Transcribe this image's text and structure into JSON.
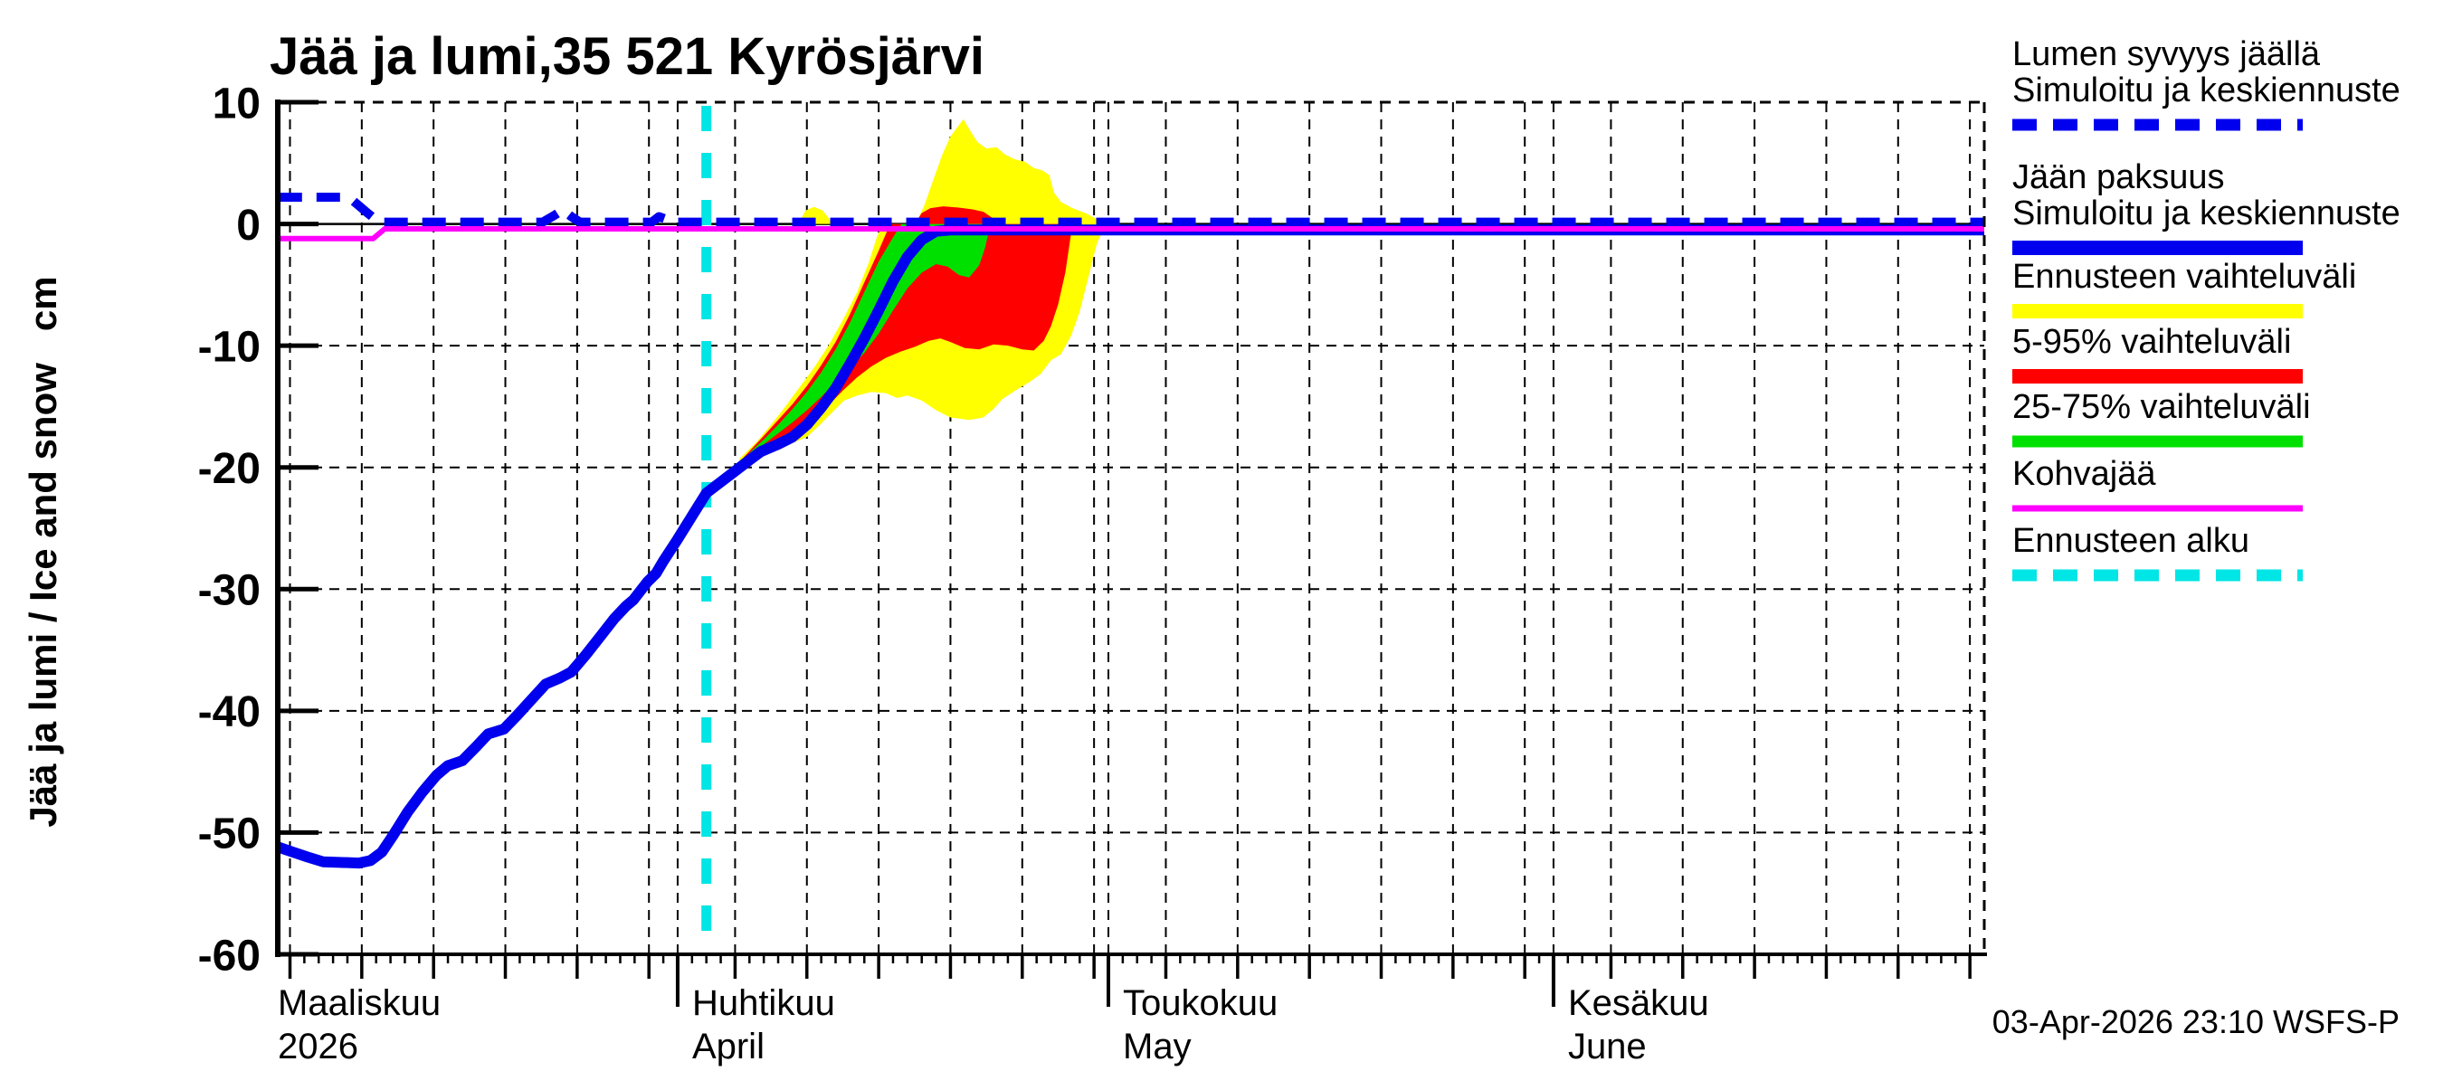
{
  "title": "Jää ja lumi,35 521 Kyrösjärvi",
  "timestamp": "03-Apr-2026 23:10 WSFS-P",
  "y_axis": {
    "label": "Jää ja lumi / Ice and snow   cm",
    "ticks": [
      10,
      0,
      -10,
      -20,
      -30,
      -40,
      -50,
      -60
    ],
    "max": 10,
    "min": -60
  },
  "x_axis": {
    "day_min": 3.15,
    "day_max": 122,
    "months": [
      {
        "name_fi": "Maaliskuu",
        "name_sub": "2026",
        "start_day": 0,
        "days": 31
      },
      {
        "name_fi": "Huhtikuu",
        "name_sub": "April",
        "start_day": 31,
        "days": 30
      },
      {
        "name_fi": "Toukokuu",
        "name_sub": "May",
        "start_day": 61,
        "days": 31
      },
      {
        "name_fi": "Kesäkuu",
        "name_sub": "June",
        "start_day": 92,
        "days": 30
      }
    ]
  },
  "legend": [
    {
      "lines": [
        "Lumen syvyys jäällä",
        "Simuloitu ja keskiennuste"
      ],
      "color": "#0000EE",
      "style": "dashed",
      "thickness": 13
    },
    {
      "lines": [
        "Jään paksuus",
        "Simuloitu ja keskiennuste"
      ],
      "color": "#0000EE",
      "style": "solid",
      "thickness": 16
    },
    {
      "lines": [
        "Ennusteen vaihteluväli"
      ],
      "color": "#FFFF00",
      "style": "solid",
      "thickness": 16
    },
    {
      "lines": [
        "5-95% vaihteluväli"
      ],
      "color": "#FF0000",
      "style": "solid",
      "thickness": 16
    },
    {
      "lines": [
        "25-75% vaihteluväli"
      ],
      "color": "#00E000",
      "style": "solid",
      "thickness": 13
    },
    {
      "lines": [
        "Kohvajää"
      ],
      "color": "#FF00FF",
      "style": "solid",
      "thickness": 7
    },
    {
      "lines": [
        "Ennusteen alku"
      ],
      "color": "#00E5E5",
      "style": "dashed",
      "thickness": 13
    }
  ],
  "chart_data": {
    "type": "line",
    "x_unit": "days since 2026-03-01 (0 = Mar 1)",
    "ylabel": "Jää ja lumi / Ice and snow cm",
    "ylim": [
      -60,
      10
    ],
    "grid": "dashed, 5-day vertical and 10 cm horizontal",
    "forecast_start_day": 33,
    "series": [
      {
        "name": "snow-depth-on-ice-simulated-and-mean-forecast",
        "color": "#0000EE",
        "style": "dashed",
        "width": 10,
        "points": [
          [
            3.2,
            2.2
          ],
          [
            7.6,
            2.2
          ],
          [
            8.4,
            1.9
          ],
          [
            9.4,
            0.9
          ],
          [
            10.2,
            0.15
          ],
          [
            21.6,
            0.15
          ],
          [
            22.4,
            0.7
          ],
          [
            23,
            1.15
          ],
          [
            23.6,
            0.6
          ],
          [
            24.2,
            0.15
          ],
          [
            29.2,
            0.15
          ],
          [
            29.7,
            0.6
          ],
          [
            30.3,
            0.35
          ],
          [
            30.9,
            0.15
          ],
          [
            122,
            0.15
          ]
        ]
      },
      {
        "name": "ice-thickness-simulated-and-mean-forecast",
        "color": "#0000EE",
        "style": "solid",
        "width": 12,
        "points": [
          [
            3.2,
            -51.2
          ],
          [
            4.2,
            -51.6
          ],
          [
            5.2,
            -52
          ],
          [
            6.3,
            -52.4
          ],
          [
            8.8,
            -52.5
          ],
          [
            9.6,
            -52.3
          ],
          [
            10.4,
            -51.6
          ],
          [
            11.2,
            -50.2
          ],
          [
            12.2,
            -48.3
          ],
          [
            13.2,
            -46.7
          ],
          [
            14.2,
            -45.3
          ],
          [
            15,
            -44.5
          ],
          [
            16,
            -44.1
          ],
          [
            17,
            -42.9
          ],
          [
            17.8,
            -41.9
          ],
          [
            18.9,
            -41.5
          ],
          [
            19.8,
            -40.4
          ],
          [
            20.8,
            -39.1
          ],
          [
            21.8,
            -37.8
          ],
          [
            22.8,
            -37.3
          ],
          [
            23.6,
            -36.8
          ],
          [
            24.6,
            -35.4
          ],
          [
            25.6,
            -33.9
          ],
          [
            26.6,
            -32.4
          ],
          [
            27.4,
            -31.4
          ],
          [
            27.9,
            -30.9
          ],
          [
            28.9,
            -29.4
          ],
          [
            29.5,
            -28.7
          ],
          [
            30,
            -27.7
          ],
          [
            31,
            -25.9
          ],
          [
            32,
            -24
          ],
          [
            33,
            -22.1
          ],
          [
            34,
            -21.2
          ],
          [
            35,
            -20.3
          ],
          [
            36,
            -19.4
          ],
          [
            36.8,
            -18.7
          ],
          [
            38,
            -18.1
          ],
          [
            39,
            -17.5
          ],
          [
            40,
            -16.5
          ],
          [
            41,
            -15.1
          ],
          [
            42,
            -13.5
          ],
          [
            43,
            -11.5
          ],
          [
            44,
            -9.4
          ],
          [
            45,
            -7.1
          ],
          [
            46,
            -4.7
          ],
          [
            47,
            -2.7
          ],
          [
            48,
            -1.3
          ],
          [
            49,
            -0.6
          ],
          [
            50,
            -0.5
          ],
          [
            51,
            -0.5
          ],
          [
            122,
            -0.5
          ]
        ]
      },
      {
        "name": "kohvajaa-frazil-ice",
        "color": "#FF00FF",
        "style": "solid",
        "width": 6,
        "points": [
          [
            3.2,
            -1.2
          ],
          [
            9.8,
            -1.2
          ],
          [
            10.6,
            -0.4
          ],
          [
            122,
            -0.4
          ]
        ]
      }
    ],
    "bands": [
      {
        "name": "forecast-full-range-ice",
        "color": "#FFFF00",
        "upper": [
          [
            35.3,
            -19.3
          ],
          [
            36.5,
            -17.9
          ],
          [
            37.5,
            -16.5
          ],
          [
            38.5,
            -15
          ],
          [
            39.5,
            -13.4
          ],
          [
            40.5,
            -11.8
          ],
          [
            41.5,
            -10
          ],
          [
            42.5,
            -7.9
          ],
          [
            43.5,
            -5.6
          ],
          [
            44.3,
            -3.2
          ],
          [
            44.9,
            -1
          ],
          [
            45.3,
            0
          ],
          [
            60.8,
            0
          ]
        ],
        "lower": [
          [
            35.3,
            -19.6
          ],
          [
            36.5,
            -18.7
          ],
          [
            38,
            -18.2
          ],
          [
            39,
            -18
          ],
          [
            40,
            -17.5
          ],
          [
            41,
            -16.4
          ],
          [
            42,
            -15.2
          ],
          [
            42.6,
            -14.5
          ],
          [
            43.5,
            -14.1
          ],
          [
            44.5,
            -13.8
          ],
          [
            45.5,
            -13.9
          ],
          [
            46.3,
            -14.3
          ],
          [
            47,
            -14.1
          ],
          [
            48,
            -14.5
          ],
          [
            49,
            -15.3
          ],
          [
            50,
            -15.9
          ],
          [
            51.3,
            -16.1
          ],
          [
            52.3,
            -15.9
          ],
          [
            53,
            -15.2
          ],
          [
            53.6,
            -14.4
          ],
          [
            54.5,
            -13.7
          ],
          [
            55.5,
            -13
          ],
          [
            56.3,
            -12.3
          ],
          [
            57,
            -11.2
          ],
          [
            57.7,
            -10.7
          ],
          [
            58.4,
            -9.2
          ],
          [
            59,
            -7.2
          ],
          [
            59.6,
            -4.4
          ],
          [
            60.2,
            -1.6
          ],
          [
            60.8,
            0
          ]
        ]
      },
      {
        "name": "forecast-full-range-snow-early",
        "color": "#FFFF00",
        "polygon": [
          [
            39.4,
            0
          ],
          [
            39.9,
            1.1
          ],
          [
            40.5,
            1.4
          ],
          [
            41.1,
            1.1
          ],
          [
            41.5,
            0.5
          ],
          [
            41.8,
            0
          ]
        ]
      },
      {
        "name": "forecast-full-range-snow-late",
        "color": "#FFFF00",
        "polygon": [
          [
            47.6,
            0
          ],
          [
            48.2,
            1.6
          ],
          [
            48.8,
            3.6
          ],
          [
            49.4,
            5.6
          ],
          [
            50,
            7.2
          ],
          [
            50.9,
            8.6
          ],
          [
            51.4,
            7.6
          ],
          [
            51.9,
            6.7
          ],
          [
            52.5,
            6.2
          ],
          [
            53.2,
            6.3
          ],
          [
            53.8,
            5.7
          ],
          [
            54.5,
            5.3
          ],
          [
            55.2,
            5.1
          ],
          [
            55.8,
            4.6
          ],
          [
            56.4,
            4.4
          ],
          [
            56.9,
            4
          ],
          [
            57.2,
            2.6
          ],
          [
            57.7,
            1.8
          ],
          [
            58.5,
            1.3
          ],
          [
            59.4,
            0.9
          ],
          [
            60.2,
            0.4
          ],
          [
            60.9,
            0
          ]
        ]
      },
      {
        "name": "forecast-5-95-ice",
        "color": "#FF0000",
        "upper": [
          [
            35.5,
            -19.3
          ],
          [
            37,
            -17.4
          ],
          [
            38,
            -16.1
          ],
          [
            39,
            -14.8
          ],
          [
            40,
            -13.3
          ],
          [
            41,
            -11.6
          ],
          [
            42,
            -9.7
          ],
          [
            43,
            -7.4
          ],
          [
            44,
            -4.8
          ],
          [
            45,
            -2.2
          ],
          [
            45.8,
            0
          ],
          [
            58.5,
            0
          ]
        ],
        "lower": [
          [
            35.5,
            -19.5
          ],
          [
            36.5,
            -18.9
          ],
          [
            37.5,
            -18.3
          ],
          [
            38.5,
            -17.6
          ],
          [
            39.5,
            -16.8
          ],
          [
            40.5,
            -15.9
          ],
          [
            41.5,
            -14.9
          ],
          [
            42.5,
            -13.7
          ],
          [
            43.5,
            -12.6
          ],
          [
            44.5,
            -11.7
          ],
          [
            45.5,
            -11
          ],
          [
            46.5,
            -10.5
          ],
          [
            47.5,
            -10.1
          ],
          [
            48.5,
            -9.6
          ],
          [
            49.3,
            -9.4
          ],
          [
            50,
            -9.7
          ],
          [
            51,
            -10.2
          ],
          [
            52,
            -10.3
          ],
          [
            53,
            -9.9
          ],
          [
            54,
            -10
          ],
          [
            55,
            -10.3
          ],
          [
            55.8,
            -10.4
          ],
          [
            56.5,
            -9.6
          ],
          [
            57,
            -8.4
          ],
          [
            57.5,
            -6.6
          ],
          [
            58,
            -4
          ],
          [
            58.5,
            0
          ]
        ]
      },
      {
        "name": "forecast-5-95-snow",
        "color": "#FF0000",
        "polygon": [
          [
            47.5,
            0
          ],
          [
            48,
            0.9
          ],
          [
            48.6,
            1.3
          ],
          [
            49.5,
            1.45
          ],
          [
            50.5,
            1.35
          ],
          [
            51.5,
            1.2
          ],
          [
            52.3,
            1
          ],
          [
            52.9,
            0.5
          ],
          [
            53.4,
            0
          ]
        ]
      },
      {
        "name": "forecast-25-75-ice",
        "color": "#00E000",
        "upper": [
          [
            36,
            -18.8
          ],
          [
            37,
            -17.7
          ],
          [
            38,
            -16.5
          ],
          [
            39,
            -15.2
          ],
          [
            40,
            -13.8
          ],
          [
            41,
            -12.2
          ],
          [
            42,
            -10.3
          ],
          [
            43,
            -8.1
          ],
          [
            44,
            -5.6
          ],
          [
            45,
            -3.1
          ],
          [
            46,
            -1.1
          ],
          [
            46.6,
            0
          ],
          [
            52.8,
            0
          ]
        ],
        "lower": [
          [
            36,
            -19.1
          ],
          [
            37,
            -18.1
          ],
          [
            38,
            -17.2
          ],
          [
            39,
            -16.3
          ],
          [
            40,
            -15.3
          ],
          [
            41,
            -14.2
          ],
          [
            42,
            -13
          ],
          [
            43,
            -11.8
          ],
          [
            44,
            -10.6
          ],
          [
            45,
            -9
          ],
          [
            46,
            -7.1
          ],
          [
            47,
            -5.3
          ],
          [
            48,
            -4
          ],
          [
            49,
            -3.3
          ],
          [
            49.8,
            -3.5
          ],
          [
            50.6,
            -4.2
          ],
          [
            51.3,
            -4.4
          ],
          [
            52,
            -3.4
          ],
          [
            52.4,
            -2
          ],
          [
            52.8,
            0
          ]
        ]
      }
    ],
    "forecast_start_line": {
      "name": "ennusteen-alku",
      "color": "#00E5E5",
      "style": "dashed",
      "width": 11,
      "day": 33
    }
  }
}
